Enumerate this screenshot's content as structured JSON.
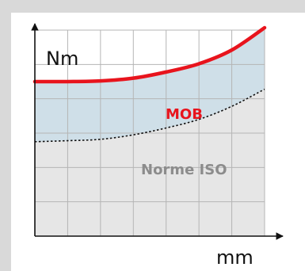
{
  "chart_data": {
    "type": "area",
    "ylabel": "Nm",
    "xlabel": "mm",
    "x": [
      0,
      1,
      2,
      3,
      4,
      5,
      6,
      7
    ],
    "xlim": [
      0,
      7
    ],
    "ylim": [
      0,
      6
    ],
    "series": [
      {
        "name": "MOB",
        "values": [
          4.5,
          4.5,
          4.52,
          4.6,
          4.78,
          5.02,
          5.42,
          6.07
        ],
        "color": "#e8141d",
        "style": "solid-thick",
        "fill": "#cfdfe8"
      },
      {
        "name": "Norme ISO",
        "values": [
          2.75,
          2.78,
          2.82,
          2.95,
          3.15,
          3.4,
          3.78,
          4.28
        ],
        "color": "#111111",
        "style": "dotted",
        "fill": "#e6e6e6"
      }
    ],
    "grid": true,
    "gridlines": {
      "x_step": 1,
      "y_step": 1
    }
  },
  "colors": {
    "frame": "#d9d9d9",
    "grid": "#b5b5b5",
    "axis": "#111111",
    "mob_label": "#e8141d",
    "iso_label": "#8c8c8c"
  }
}
